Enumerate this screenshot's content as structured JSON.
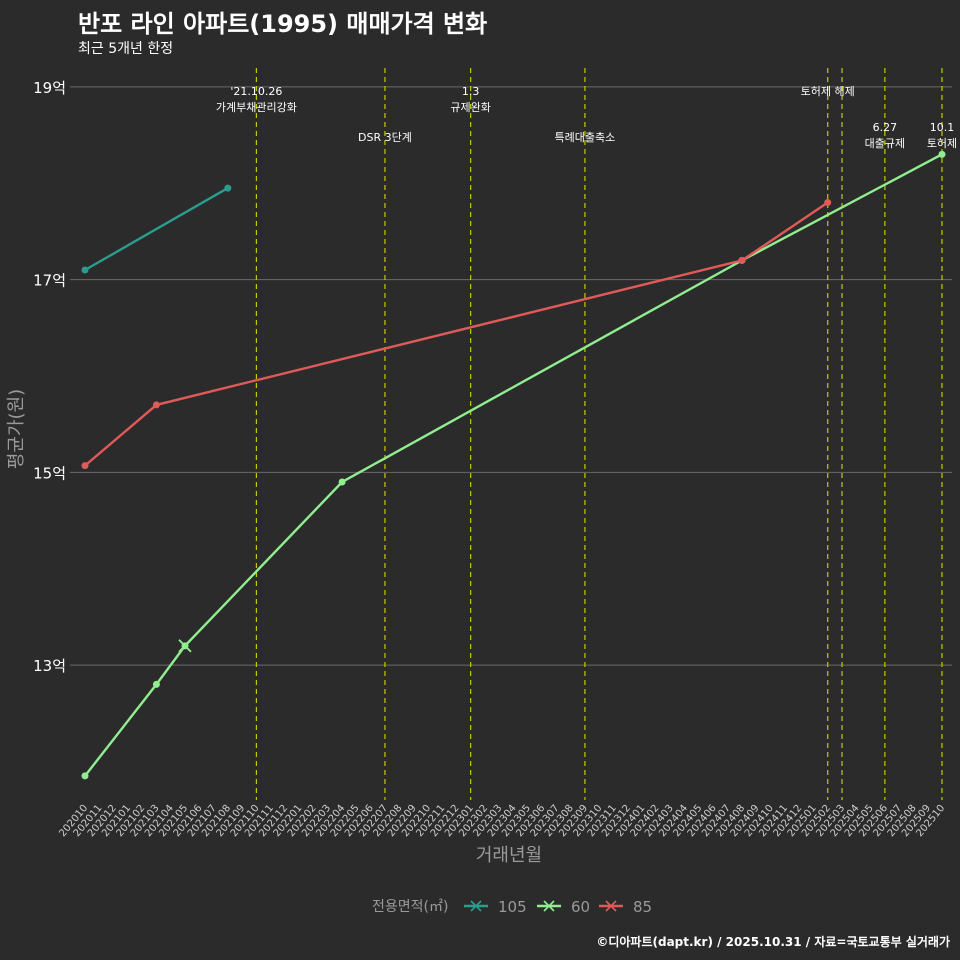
{
  "title": "반포 라인 아파트(1995) 매매가격 변화",
  "subtitle": "최근 5개년 한정",
  "caption": "©디아파트(dapt.kr) / 2025.10.31 / 자료=국토교통부 실거래가",
  "colors": {
    "background": "#2b2b2b",
    "grid": "#6a6a6a",
    "event_line": "#c8c800",
    "series_105": "#2a9d8f",
    "series_60": "#90ee90",
    "series_85": "#e05a5a"
  },
  "chart_data": {
    "type": "line",
    "title": "반포 라인 아파트(1995) 매매가격 변화",
    "subtitle": "최근 5개년 한정",
    "xlabel": "거래년월",
    "ylabel": "평균가(원)",
    "categories": [
      "202010",
      "202011",
      "202012",
      "202101",
      "202102",
      "202103",
      "202104",
      "202105",
      "202106",
      "202107",
      "202108",
      "202109",
      "202110",
      "202111",
      "202112",
      "202201",
      "202202",
      "202203",
      "202204",
      "202205",
      "202206",
      "202207",
      "202208",
      "202209",
      "202210",
      "202211",
      "202212",
      "202301",
      "202302",
      "202303",
      "202304",
      "202305",
      "202306",
      "202307",
      "202308",
      "202309",
      "202310",
      "202311",
      "202312",
      "202401",
      "202402",
      "202403",
      "202404",
      "202405",
      "202406",
      "202407",
      "202408",
      "202409",
      "202410",
      "202411",
      "202412",
      "202501",
      "202502",
      "202503",
      "202504",
      "202505",
      "202506",
      "202507",
      "202508",
      "202509",
      "202510"
    ],
    "y_ticks": [
      {
        "value": 13,
        "label": "13억"
      },
      {
        "value": 15,
        "label": "15억"
      },
      {
        "value": 17,
        "label": "17억"
      },
      {
        "value": 19,
        "label": "19억"
      }
    ],
    "ylim": [
      11.6,
      19.3
    ],
    "series": [
      {
        "name": "105",
        "color": "#2a9d8f",
        "points": [
          {
            "x": "202010",
            "y": 17.1
          },
          {
            "x": "202108",
            "y": 17.95
          }
        ]
      },
      {
        "name": "60",
        "color": "#90ee90",
        "points": [
          {
            "x": "202010",
            "y": 11.85
          },
          {
            "x": "202103",
            "y": 12.8
          },
          {
            "x": "202105",
            "y": 13.2
          },
          {
            "x": "202204",
            "y": 14.9
          },
          {
            "x": "202408",
            "y": 17.2
          },
          {
            "x": "202510",
            "y": 18.3
          }
        ]
      },
      {
        "name": "85",
        "color": "#e05a5a",
        "points": [
          {
            "x": "202010",
            "y": 15.07
          },
          {
            "x": "202103",
            "y": 15.7
          },
          {
            "x": "202408",
            "y": 17.2
          },
          {
            "x": "202502",
            "y": 17.8
          }
        ]
      }
    ],
    "events": [
      {
        "x": "202110",
        "lines": [
          "'21.10.26",
          "가계부채관리강화"
        ],
        "row": 0
      },
      {
        "x": "202207",
        "lines": [
          "DSR 3단계"
        ],
        "row": 1
      },
      {
        "x": "202301",
        "lines": [
          "1.3",
          "규제완화"
        ],
        "row": 0
      },
      {
        "x": "202309",
        "lines": [
          "특례대출축소"
        ],
        "row": 1
      },
      {
        "x": "202502",
        "lines": [
          "토허제 해제"
        ],
        "row": 0
      },
      {
        "x": "202503",
        "lines": [],
        "row": 0
      },
      {
        "x": "202506",
        "lines": [
          "6.27",
          "대출규제"
        ],
        "row": 2
      },
      {
        "x": "202510",
        "lines": [
          "10.1",
          "토허제"
        ],
        "row": 2
      }
    ],
    "legend": {
      "title": "전용면적(㎡)",
      "position": "bottom",
      "items": [
        "105",
        "60",
        "85"
      ]
    }
  }
}
